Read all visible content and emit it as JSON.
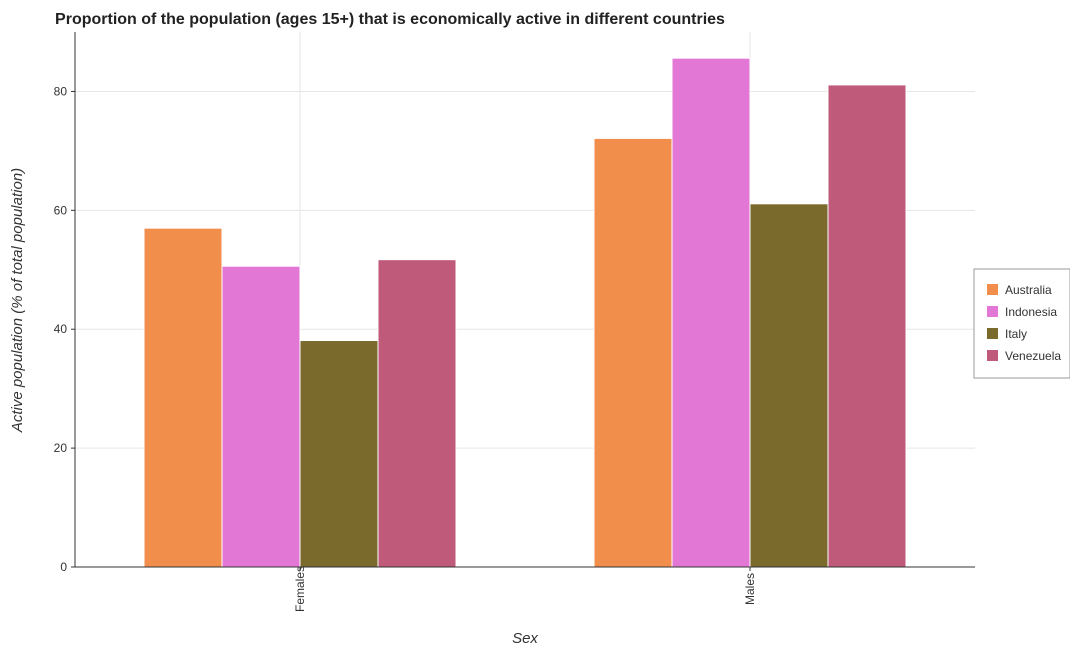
{
  "chart_data": {
    "type": "bar",
    "title": "Proportion of the population (ages 15+) that is economically active in different countries",
    "xlabel": "Sex",
    "ylabel": "Active population (% of total population)",
    "categories": [
      "Females",
      "Males"
    ],
    "series": [
      {
        "name": "Australia",
        "color": "#f28e4c",
        "values": [
          57.0,
          72.1
        ]
      },
      {
        "name": "Indonesia",
        "color": "#e377d6",
        "values": [
          50.6,
          85.6
        ]
      },
      {
        "name": "Italy",
        "color": "#7a6a2c",
        "values": [
          38.1,
          61.1
        ]
      },
      {
        "name": "Venezuela",
        "color": "#c05a7a",
        "values": [
          51.7,
          81.1
        ]
      }
    ],
    "ylim": [
      0,
      90
    ],
    "yticks": [
      0,
      20,
      40,
      60,
      80
    ],
    "grid": true,
    "legend": "right"
  }
}
